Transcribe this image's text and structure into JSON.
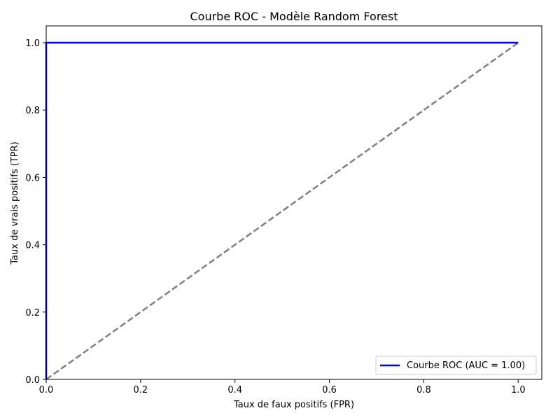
{
  "chart_data": {
    "type": "line",
    "title": "Courbe ROC - Modèle Random Forest",
    "xlabel": "Taux de faux positifs (FPR)",
    "ylabel": "Taux de vrais positifs (TPR)",
    "xlim": [
      0.0,
      1.05
    ],
    "ylim": [
      0.0,
      1.05
    ],
    "x_ticks": [
      "0.0",
      "0.2",
      "0.4",
      "0.6",
      "0.8",
      "1.0"
    ],
    "y_ticks": [
      "0.0",
      "0.2",
      "0.4",
      "0.6",
      "0.8",
      "1.0"
    ],
    "grid": false,
    "legend_position": "bottom-right",
    "series": [
      {
        "name": "Courbe ROC (AUC = 1.00)",
        "color": "#0000ff",
        "style": "solid",
        "x": [
          0.0,
          0.0,
          1.0
        ],
        "y": [
          0.0,
          1.0,
          1.0
        ]
      },
      {
        "color": "#808080",
        "style": "dashed",
        "x": [
          0.0,
          1.0
        ],
        "y": [
          0.0,
          1.0
        ]
      }
    ]
  }
}
